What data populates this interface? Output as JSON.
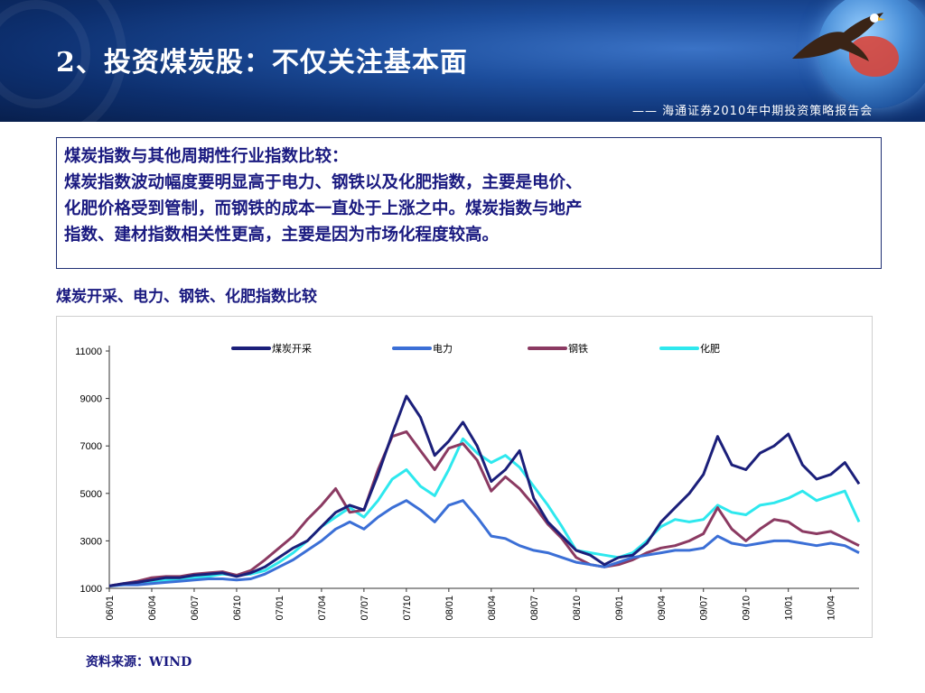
{
  "slide": {
    "title": "2、投资煤炭股：不仅关注基本面",
    "subtitle": "—— 海通证券2010年中期投资策略报告会",
    "callout": [
      "煤炭指数与其他周期性行业指数比较：",
      "煤炭指数波动幅度要明显高于电力、钢铁以及化肥指数，主要是电价、",
      "化肥价格受到管制，而钢铁的成本一直处于上涨之中。煤炭指数与地产",
      "指数、建材指数相关性更高，主要是因为市场化程度较高。"
    ],
    "chart_caption": "煤炭开采、电力、钢铁、化肥指数比较",
    "source": "资料来源：WIND"
  },
  "chart_data": {
    "type": "line",
    "title": "",
    "xlabel": "",
    "ylabel": "",
    "ylim": [
      1000,
      11000
    ],
    "yticks": [
      1000,
      3000,
      5000,
      7000,
      9000,
      11000
    ],
    "x_tick_labels": [
      "06/01",
      "06/04",
      "06/07",
      "06/10",
      "07/01",
      "07/04",
      "07/07",
      "07/10",
      "08/01",
      "08/04",
      "08/07",
      "08/10",
      "09/01",
      "09/04",
      "09/07",
      "09/10",
      "10/01",
      "10/04"
    ],
    "legend_position": "top",
    "x": [
      "06/01",
      "06/02",
      "06/03",
      "06/04",
      "06/05",
      "06/06",
      "06/07",
      "06/08",
      "06/09",
      "06/10",
      "06/11",
      "06/12",
      "07/01",
      "07/02",
      "07/03",
      "07/04",
      "07/05",
      "07/06",
      "07/07",
      "07/08",
      "07/09",
      "07/10",
      "07/11",
      "07/12",
      "08/01",
      "08/02",
      "08/03",
      "08/04",
      "08/05",
      "08/06",
      "08/07",
      "08/08",
      "08/09",
      "08/10",
      "08/11",
      "08/12",
      "09/01",
      "09/02",
      "09/03",
      "09/04",
      "09/05",
      "09/06",
      "09/07",
      "09/08",
      "09/09",
      "09/10",
      "09/11",
      "09/12",
      "10/01",
      "10/02",
      "10/03",
      "10/04",
      "10/05",
      "10/06"
    ],
    "series": [
      {
        "name": "煤炭开采",
        "color": "#1b1f7a",
        "values": [
          1100,
          1200,
          1250,
          1350,
          1450,
          1450,
          1550,
          1600,
          1650,
          1500,
          1650,
          1900,
          2300,
          2700,
          3000,
          3600,
          4200,
          4500,
          4300,
          5800,
          7500,
          9100,
          8200,
          6600,
          7200,
          8000,
          7000,
          5500,
          6000,
          6800,
          4800,
          3800,
          3200,
          2600,
          2400,
          2000,
          2300,
          2400,
          2900,
          3800,
          4400,
          5000,
          5800,
          7400,
          6200,
          6000,
          6700,
          7000,
          7500,
          6200,
          5600,
          5800,
          6300,
          5400
        ]
      },
      {
        "name": "电力",
        "color": "#3b6fd6",
        "values": [
          1100,
          1150,
          1150,
          1200,
          1250,
          1300,
          1350,
          1400,
          1400,
          1350,
          1400,
          1600,
          1900,
          2200,
          2600,
          3000,
          3500,
          3800,
          3500,
          4000,
          4400,
          4700,
          4300,
          3800,
          4500,
          4700,
          4000,
          3200,
          3100,
          2800,
          2600,
          2500,
          2300,
          2100,
          2000,
          1900,
          2100,
          2300,
          2400,
          2500,
          2600,
          2600,
          2700,
          3200,
          2900,
          2800,
          2900,
          3000,
          3000,
          2900,
          2800,
          2900,
          2800,
          2500
        ]
      },
      {
        "name": "钢铁",
        "color": "#8b3a62",
        "values": [
          1100,
          1200,
          1300,
          1450,
          1500,
          1500,
          1600,
          1650,
          1700,
          1550,
          1750,
          2200,
          2700,
          3200,
          3900,
          4500,
          5200,
          4200,
          4300,
          6000,
          7400,
          7600,
          6800,
          6000,
          6900,
          7100,
          6400,
          5100,
          5700,
          5200,
          4500,
          3700,
          3100,
          2300,
          2000,
          1900,
          2000,
          2200,
          2500,
          2700,
          2800,
          3000,
          3300,
          4400,
          3500,
          3000,
          3500,
          3900,
          3800,
          3400,
          3300,
          3400,
          3100,
          2800
        ]
      },
      {
        "name": "化肥",
        "color": "#2ee8ee",
        "values": [
          1100,
          1150,
          1200,
          1300,
          1350,
          1400,
          1450,
          1500,
          1600,
          1550,
          1600,
          1750,
          2100,
          2500,
          3000,
          3600,
          4000,
          4400,
          4000,
          4700,
          5600,
          6000,
          5300,
          4900,
          6000,
          7300,
          6700,
          6300,
          6600,
          6100,
          5300,
          4500,
          3600,
          2600,
          2500,
          2400,
          2300,
          2500,
          3000,
          3600,
          3900,
          3800,
          3900,
          4500,
          4200,
          4100,
          4500,
          4600,
          4800,
          5100,
          4700,
          4900,
          5100,
          3800
        ]
      }
    ]
  }
}
